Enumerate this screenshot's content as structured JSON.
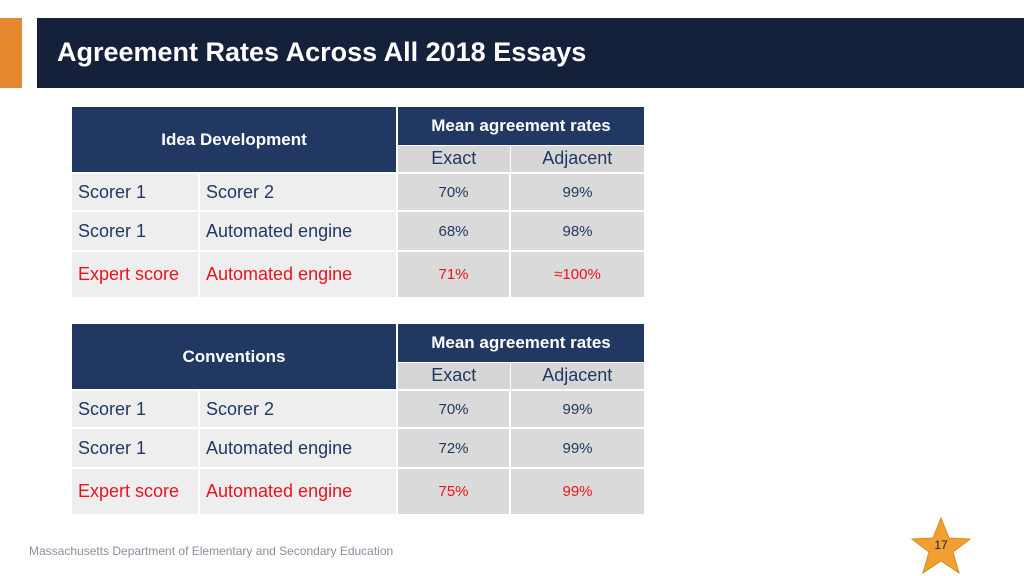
{
  "slide": {
    "title": "Agreement Rates Across All 2018 Essays",
    "footer": "Massachusetts Department of Elementary and Secondary Education",
    "page_number": "17"
  },
  "header_labels": {
    "mean_agreement_rates": "Mean agreement rates",
    "exact": "Exact",
    "adjacent": "Adjacent"
  },
  "tables": [
    {
      "category": "Idea Development",
      "rows": [
        {
          "a": "Scorer 1",
          "b": "Scorer 2",
          "exact": "70%",
          "adjacent": "99%"
        },
        {
          "a": "Scorer 1",
          "b": "Automated engine",
          "exact": "68%",
          "adjacent": "98%"
        },
        {
          "a": "Expert score",
          "b": "Automated engine",
          "exact": "71%",
          "adjacent": "≈100%"
        }
      ]
    },
    {
      "category": "Conventions",
      "rows": [
        {
          "a": "Scorer 1",
          "b": "Scorer 2",
          "exact": "70%",
          "adjacent": "99%"
        },
        {
          "a": "Scorer 1",
          "b": "Automated engine",
          "exact": "72%",
          "adjacent": "99%"
        },
        {
          "a": "Expert score",
          "b": "Automated engine",
          "exact": "75%",
          "adjacent": "99%"
        }
      ]
    }
  ],
  "colors": {
    "title_bar": "#15213b",
    "accent": "#e4892f",
    "table_header": "#203862",
    "expert_text": "#e8141d",
    "star": "#f0a030"
  }
}
